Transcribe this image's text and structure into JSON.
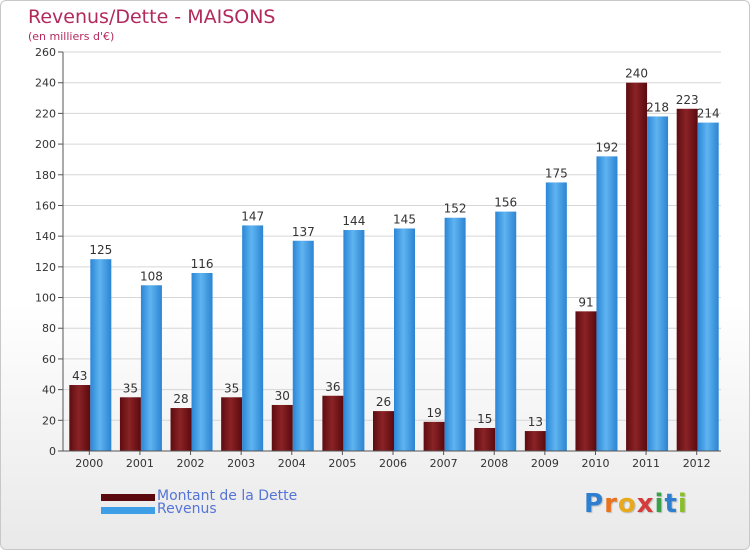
{
  "header": {
    "title": "Revenus/Dette - MAISONS",
    "subtitle": "(en milliers d'€)"
  },
  "chart_data": {
    "type": "bar",
    "categories": [
      "2000",
      "2001",
      "2002",
      "2003",
      "2004",
      "2005",
      "2006",
      "2007",
      "2008",
      "2009",
      "2010",
      "2011",
      "2012"
    ],
    "series": [
      {
        "name": "Montant de la Dette",
        "values": [
          43,
          35,
          28,
          35,
          30,
          36,
          26,
          19,
          15,
          13,
          91,
          240,
          223
        ],
        "color": "#7a1a1e"
      },
      {
        "name": "Revenus",
        "values": [
          125,
          108,
          116,
          147,
          137,
          144,
          145,
          152,
          156,
          175,
          192,
          218,
          214
        ],
        "color": "#3e9ee6"
      }
    ],
    "ylim": [
      0,
      260
    ],
    "yticks": [
      0,
      20,
      40,
      60,
      80,
      100,
      120,
      140,
      160,
      180,
      200,
      220,
      240,
      260
    ],
    "grid": true,
    "legend_position": "bottom-left"
  },
  "legend": {
    "items": [
      {
        "label": "Montant de la Dette",
        "color": "#5a0a0e"
      },
      {
        "label": "Revenus",
        "color": "#3e9ee6"
      }
    ]
  },
  "logo": {
    "letters": [
      "P",
      "r",
      "o",
      "x",
      "i",
      "t",
      "i"
    ],
    "colors": [
      "#2f7fd0",
      "#e8731c",
      "#e8a91c",
      "#d43b3b",
      "#3aa04a",
      "#2f7fd0",
      "#8bbf2a"
    ]
  }
}
